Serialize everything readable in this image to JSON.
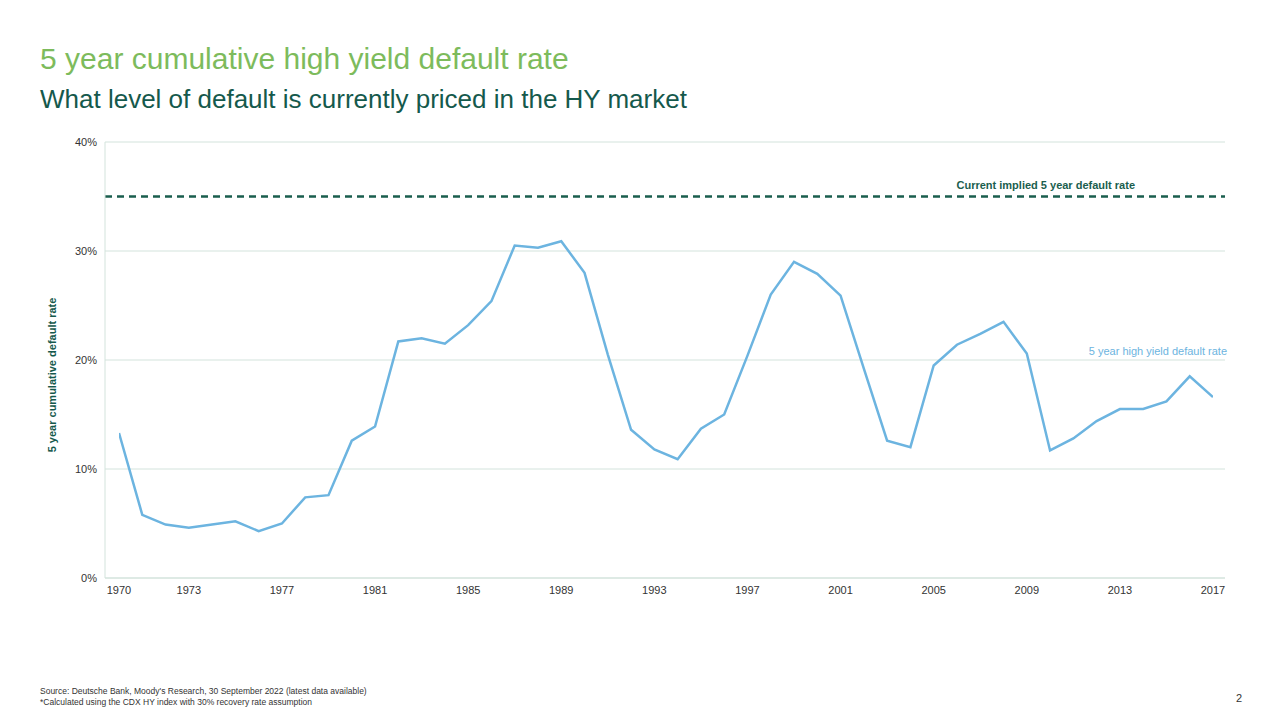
{
  "title": "5 year cumulative high yield default rate",
  "subtitle": "What level of default is currently priced in the HY market",
  "footnotes": [
    "Source: Deutsche Bank, Moody's Research, 30 September 2022 (latest data available)",
    "*Calculated using the CDX HY index with 30% recovery rate assumption"
  ],
  "page": "2",
  "chart_data": {
    "type": "line",
    "y_label": "5 year cumulative default rate",
    "x": [
      1970,
      1971,
      1972,
      1973,
      1974,
      1975,
      1976,
      1977,
      1978,
      1979,
      1980,
      1981,
      1982,
      1983,
      1984,
      1985,
      1986,
      1987,
      1988,
      1989,
      1990,
      1991,
      1992,
      1993,
      1994,
      1995,
      1996,
      1997,
      1998,
      1999,
      2000,
      2001,
      2002,
      2003,
      2004,
      2005,
      2006,
      2007,
      2008,
      2009,
      2010,
      2011,
      2012,
      2013,
      2014,
      2015,
      2016,
      2017
    ],
    "series": [
      {
        "name": "5 year high yield default rate",
        "color": "#6cb4e0",
        "values": [
          13.3,
          5.8,
          4.9,
          4.6,
          4.9,
          5.2,
          4.3,
          5.0,
          7.4,
          7.6,
          12.6,
          13.9,
          21.7,
          22.0,
          21.5,
          23.2,
          25.4,
          30.5,
          30.3,
          30.9,
          28.0,
          20.5,
          13.6,
          11.8,
          10.9,
          13.7,
          15.0,
          20.4,
          26.0,
          29.0,
          27.9,
          25.9,
          19.2,
          12.6,
          12.0,
          19.5,
          21.4,
          22.4,
          23.5,
          20.6,
          11.7,
          12.8,
          14.4,
          15.5,
          15.5,
          16.2,
          18.5,
          16.6
        ]
      }
    ],
    "annotations": [
      {
        "text": "Current implied 5 year default rate",
        "y": 35,
        "color": "#1a5e4e",
        "line_style": "dashed"
      }
    ],
    "xlim": [
      1970,
      2017
    ],
    "xticks": [
      1970,
      1973,
      1977,
      1981,
      1985,
      1989,
      1993,
      1997,
      2001,
      2005,
      2009,
      2013,
      2017
    ],
    "ylim": [
      0,
      40
    ],
    "yticks": [
      {
        "value": 0,
        "label": "0%"
      },
      {
        "value": 10,
        "label": "10%"
      },
      {
        "value": 20,
        "label": "20%"
      },
      {
        "value": 30,
        "label": "30%"
      },
      {
        "value": 40,
        "label": "40%"
      }
    ],
    "grid": true
  }
}
